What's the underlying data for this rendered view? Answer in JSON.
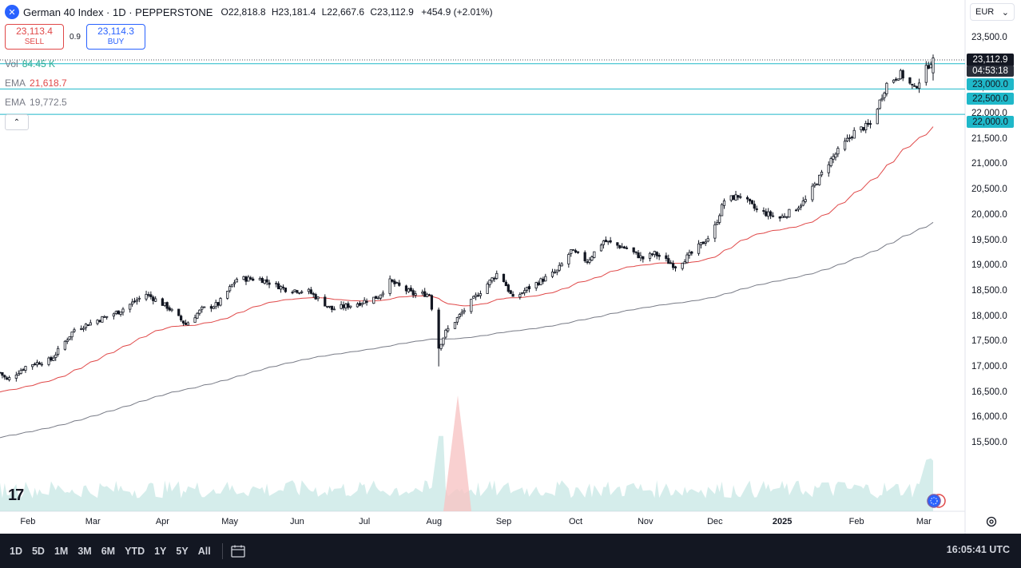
{
  "header": {
    "symbol": "German 40 Index · 1D · PEPPERSTONE",
    "o_label": "O",
    "o_val": "22,818.8",
    "h_label": "H",
    "h_val": "23,181.4",
    "l_label": "L",
    "l_val": "22,667.6",
    "c_label": "C",
    "c_val": "23,112.9",
    "change": "+454.9 (+2.01%)"
  },
  "trade": {
    "sell_price": "23,113.4",
    "sell_label": "SELL",
    "spread": "0.9",
    "buy_price": "23,114.3",
    "buy_label": "BUY"
  },
  "legend": {
    "vol_label": "Vol",
    "vol_value": "84.45 K",
    "ema1_label": "EMA",
    "ema1_value": "21,618.7",
    "ema2_label": "EMA",
    "ema2_value": "19,772.5",
    "collapse": "⌃"
  },
  "currency": {
    "label": "EUR",
    "chevron": "⌄"
  },
  "price_tags": {
    "last": "23,112.9",
    "countdown": "04:53:18",
    "l23000": "23,000.0",
    "l22500": "22,500.0",
    "l22000": "22,000.0"
  },
  "bottom_bar": {
    "timeframes": [
      "1D",
      "5D",
      "1M",
      "3M",
      "6M",
      "YTD",
      "1Y",
      "5Y",
      "All"
    ],
    "clock": "16:05:41 UTC"
  },
  "colors": {
    "up": "#131722",
    "ema_fast": "#e04848",
    "ema_slow": "#787b86",
    "hline": "#1fb8c9",
    "vol_up": "#b2dfdb",
    "vol_down": "#f8c4c4"
  },
  "chart_data": {
    "type": "candlestick",
    "title": "German 40 Index · 1D · PEPPERSTONE",
    "y_ticks": [
      "23,500.0",
      "23,000.0",
      "22,500.0",
      "22,000.0",
      "21,500.0",
      "21,000.0",
      "20,500.0",
      "20,000.0",
      "19,500.0",
      "19,000.0",
      "18,500.0",
      "18,000.0",
      "17,500.0",
      "17,000.0",
      "16,500.0",
      "16,000.0",
      "15,500.0"
    ],
    "x_ticks": [
      "Feb",
      "Mar",
      "Apr",
      "May",
      "Jun",
      "Jul",
      "Aug",
      "Sep",
      "Oct",
      "Nov",
      "Dec",
      "2025",
      "Feb",
      "Mar"
    ],
    "ylim": [
      15300,
      23750
    ],
    "horizontal_levels": [
      23000,
      22500,
      22000
    ],
    "series": [
      {
        "name": "EMA",
        "last": 21618.7
      },
      {
        "name": "EMA",
        "last": 19772.5
      }
    ],
    "price_path": [
      [
        "2024-01-29",
        16900
      ],
      [
        "2024-02-01",
        16750
      ],
      [
        "2024-02-10",
        17050
      ],
      [
        "2024-02-20",
        17150
      ],
      [
        "2024-03-01",
        17750
      ],
      [
        "2024-03-20",
        18100
      ],
      [
        "2024-04-01",
        18450
      ],
      [
        "2024-04-10",
        18200
      ],
      [
        "2024-04-18",
        17850
      ],
      [
        "2024-04-25",
        18150
      ],
      [
        "2024-05-02",
        18250
      ],
      [
        "2024-05-10",
        18750
      ],
      [
        "2024-05-20",
        18750
      ],
      [
        "2024-05-31",
        18550
      ],
      [
        "2024-06-10",
        18500
      ],
      [
        "2024-06-20",
        18150
      ],
      [
        "2024-06-30",
        18250
      ],
      [
        "2024-07-10",
        18400
      ],
      [
        "2024-07-15",
        18700
      ],
      [
        "2024-07-25",
        18450
      ],
      [
        "2024-08-01",
        18450
      ],
      [
        "2024-08-05",
        17400
      ],
      [
        "2024-08-08",
        17700
      ],
      [
        "2024-08-20",
        18350
      ],
      [
        "2024-08-31",
        18900
      ],
      [
        "2024-09-06",
        18350
      ],
      [
        "2024-09-12",
        18550
      ],
      [
        "2024-09-25",
        18900
      ],
      [
        "2024-10-01",
        19300
      ],
      [
        "2024-10-08",
        19100
      ],
      [
        "2024-10-15",
        19500
      ],
      [
        "2024-10-25",
        19350
      ],
      [
        "2024-11-01",
        19150
      ],
      [
        "2024-11-06",
        19250
      ],
      [
        "2024-11-15",
        19000
      ],
      [
        "2024-11-22",
        19250
      ],
      [
        "2024-12-01",
        19650
      ],
      [
        "2024-12-06",
        20300
      ],
      [
        "2024-12-13",
        20400
      ],
      [
        "2024-12-20",
        20100
      ],
      [
        "2024-12-30",
        19950
      ],
      [
        "2025-01-06",
        20150
      ],
      [
        "2025-01-10",
        20300
      ],
      [
        "2025-01-20",
        21050
      ],
      [
        "2025-01-31",
        21650
      ],
      [
        "2025-02-07",
        21800
      ],
      [
        "2025-02-14",
        22600
      ],
      [
        "2025-02-20",
        22800
      ],
      [
        "2025-02-26",
        22500
      ],
      [
        "2025-03-03",
        22900
      ],
      [
        "2025-03-06",
        23113
      ]
    ]
  }
}
